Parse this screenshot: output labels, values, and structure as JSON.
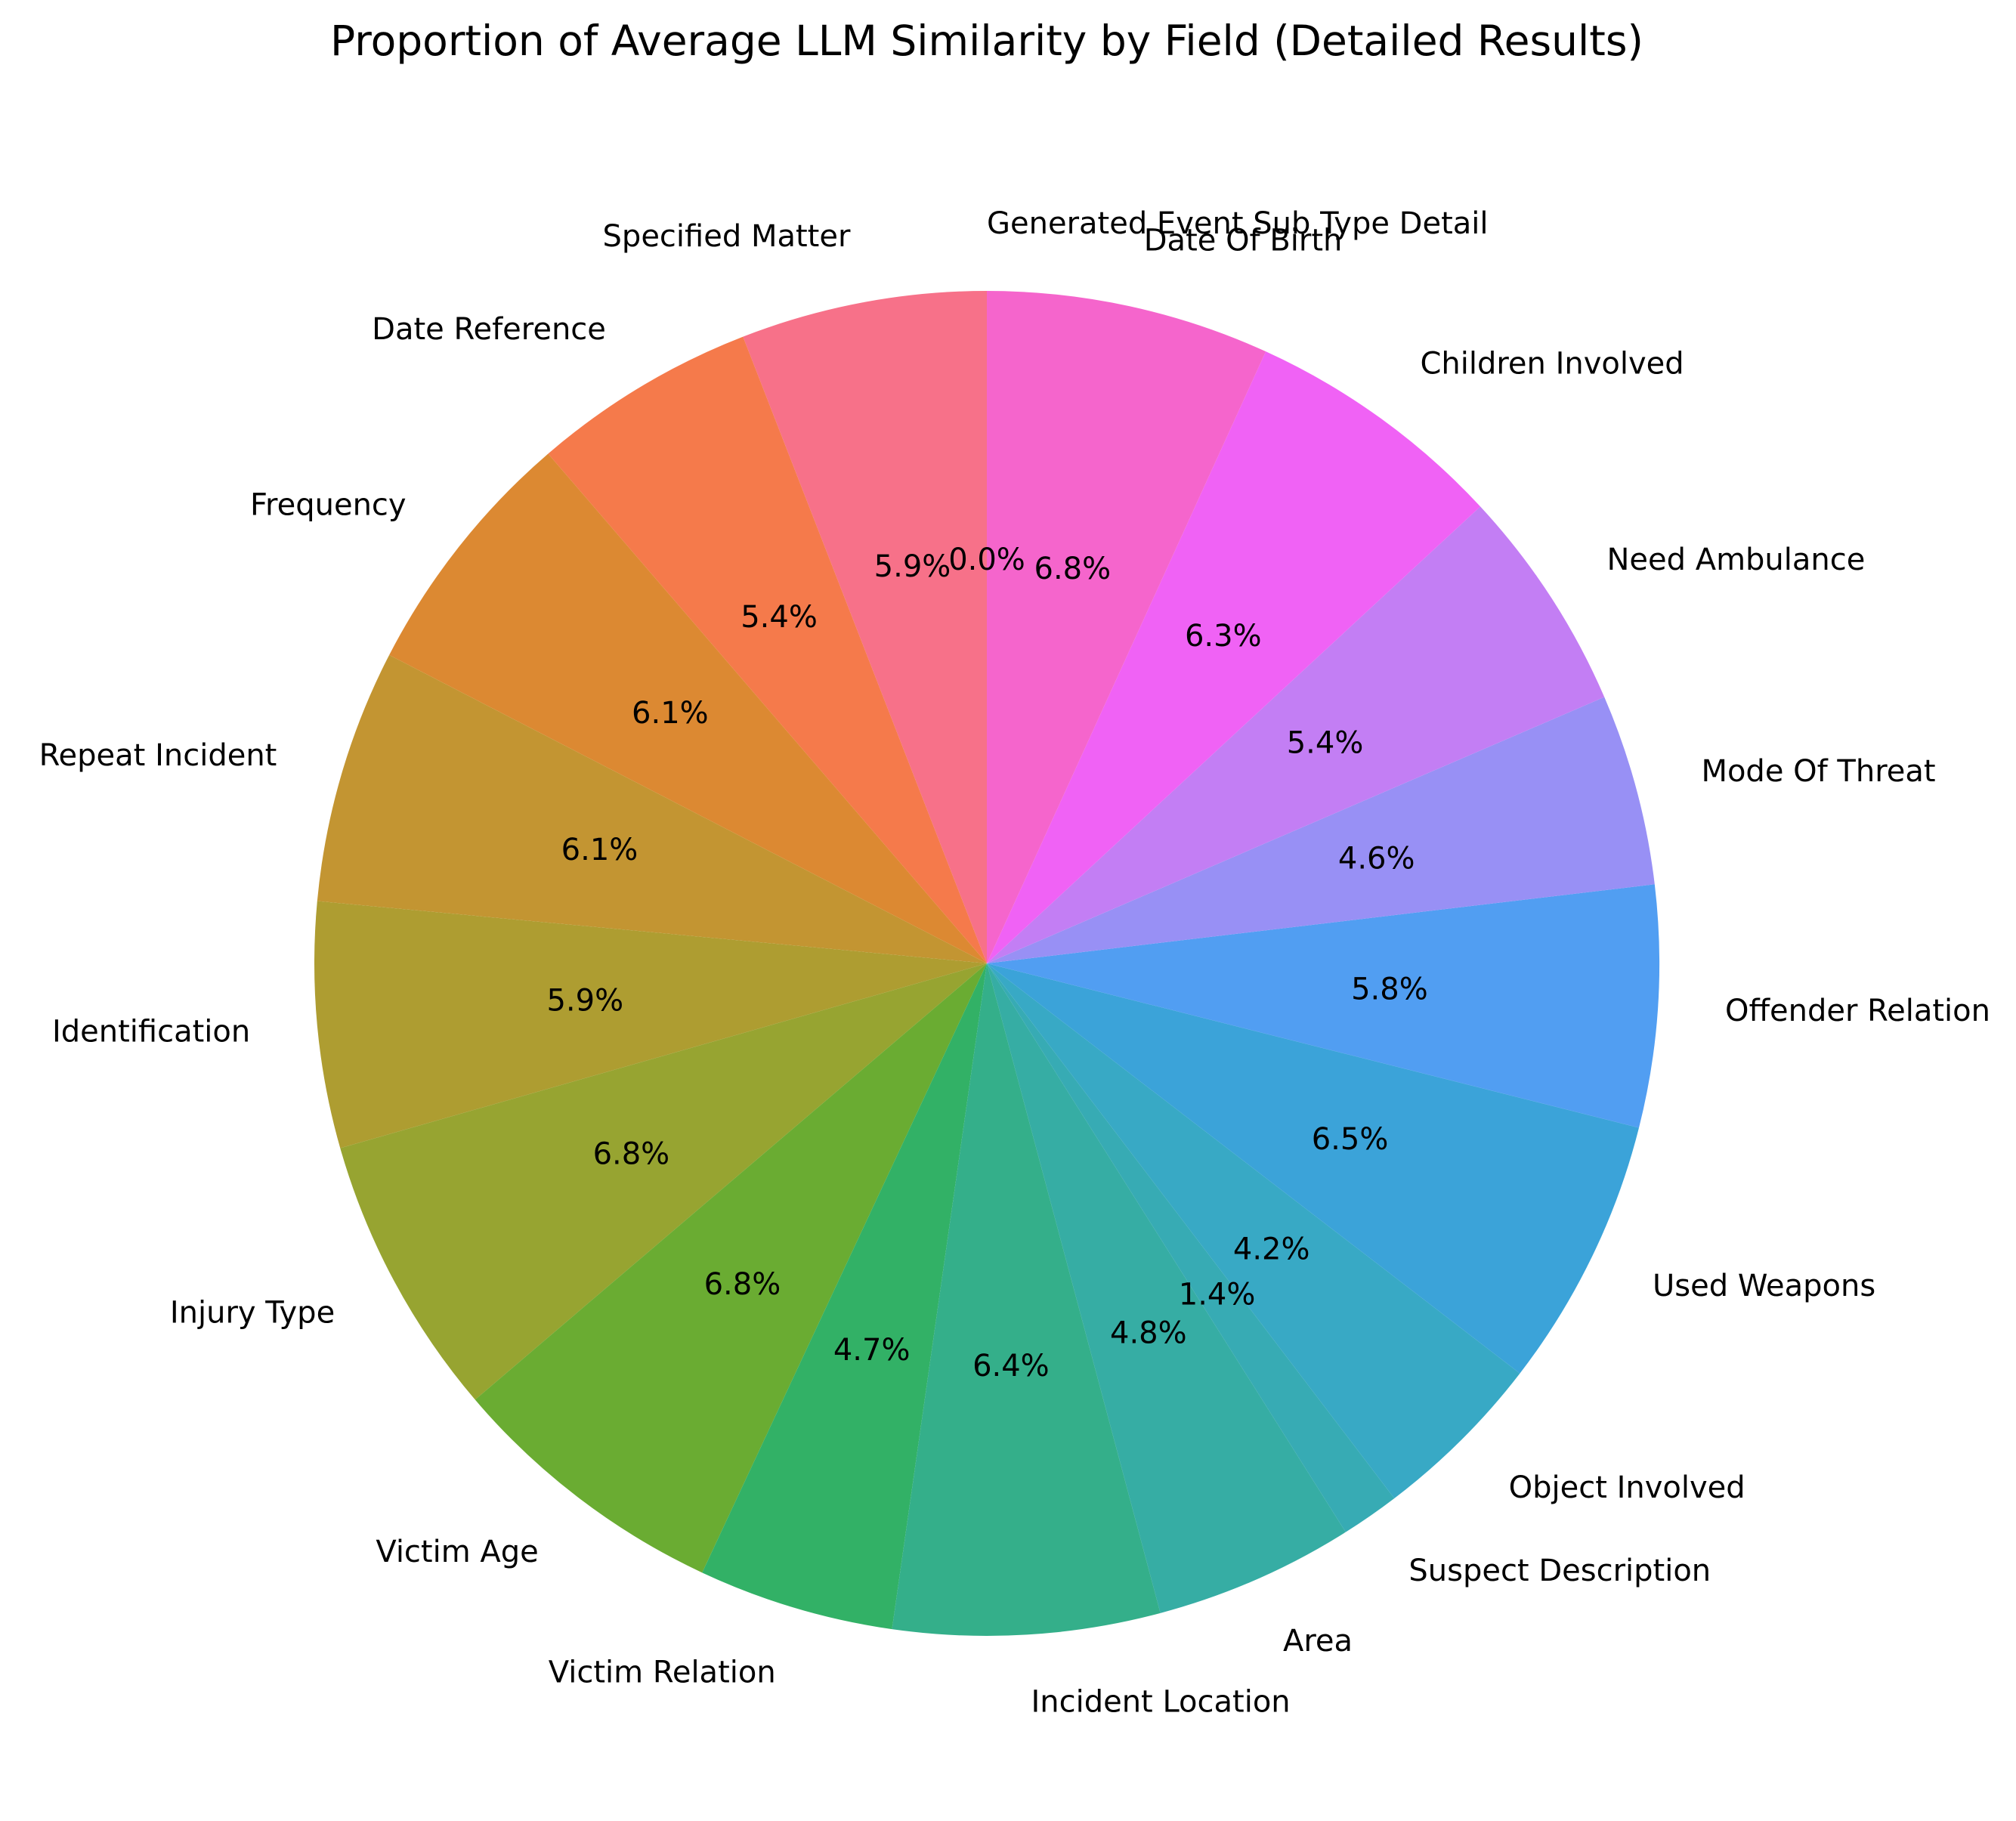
{
  "chart_data": {
    "type": "pie",
    "title": "Proportion of Average LLM Similarity by Field (Detailed Results)",
    "start_angle_deg": 90,
    "direction": "counterclockwise",
    "categories": [
      "Generated Event Sub Type Detail",
      "Specified Matter",
      "Date Reference",
      "Frequency",
      "Repeat Incident",
      "Identification",
      "Injury Type",
      "Victim Age",
      "Victim Relation",
      "Incident Location",
      "Area",
      "Suspect Description",
      "Object Involved",
      "Used Weapons",
      "Offender Relation",
      "Mode Of Threat",
      "Need Ambulance",
      "Children Involved",
      "Date Of Birth"
    ],
    "values": [
      0.0,
      5.9,
      5.4,
      6.1,
      6.1,
      5.9,
      6.8,
      6.8,
      4.7,
      6.4,
      4.8,
      1.4,
      4.2,
      6.5,
      5.8,
      4.6,
      5.4,
      6.3,
      6.8
    ],
    "percent_labels": [
      "0.0%",
      "5.9%",
      "5.4%",
      "6.1%",
      "6.1%",
      "5.9%",
      "6.8%",
      "6.8%",
      "4.7%",
      "6.4%",
      "4.8%",
      "1.4%",
      "4.2%",
      "6.5%",
      "5.8%",
      "4.6%",
      "5.4%",
      "6.3%",
      "6.8%"
    ],
    "colors": [
      "#f77189",
      "#f77189",
      "#f57a4b",
      "#dc8932",
      "#c39532",
      "#ae9d31",
      "#97a431",
      "#6aac32",
      "#32b166",
      "#34af8a",
      "#36ada4",
      "#37abb4",
      "#38a9c5",
      "#3ba3d9",
      "#519ef2",
      "#9890f5",
      "#c37ef4",
      "#f062f5",
      "#f565cc"
    ]
  }
}
